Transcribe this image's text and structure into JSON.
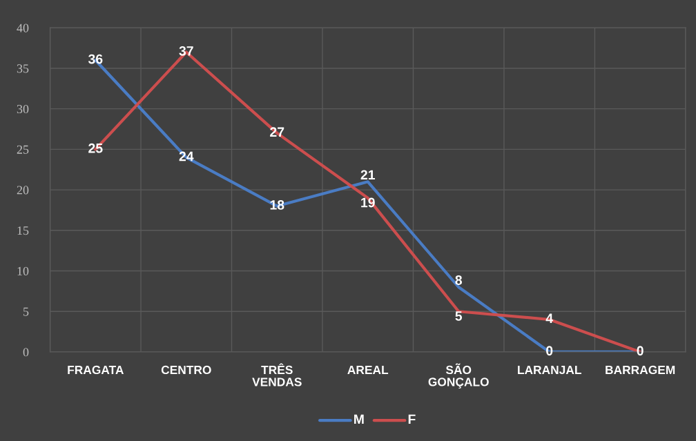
{
  "chart_data": {
    "type": "line",
    "categories": [
      "FRAGATA",
      "CENTRO",
      "TRÊS\nVENDAS",
      "AREAL",
      "SÃO\nGONÇALO",
      "LARANJAL",
      "BARRAGEM"
    ],
    "series": [
      {
        "name": "M",
        "color": "#4a7cc4",
        "values": [
          36,
          24,
          18,
          21,
          8,
          0,
          0
        ],
        "value_labels": [
          "36",
          "24",
          "18",
          "21",
          "8",
          "0",
          "0"
        ]
      },
      {
        "name": "F",
        "color": "#cc4e4e",
        "values": [
          25,
          37,
          27,
          19,
          5,
          4,
          0
        ],
        "value_labels": [
          "25",
          "37",
          "27",
          "19",
          "5",
          "4",
          null
        ]
      }
    ],
    "ylim": [
      0,
      40
    ],
    "yticks": [
      0,
      5,
      10,
      15,
      20,
      25,
      30,
      35,
      40
    ],
    "grid": true,
    "legend": "bottom",
    "marker": "none",
    "line_style": "solid"
  }
}
